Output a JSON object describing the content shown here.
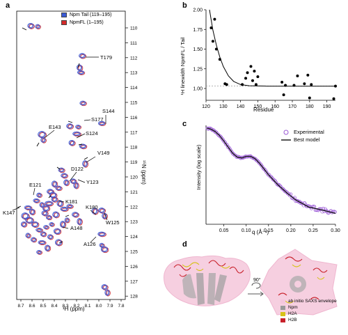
{
  "panels": {
    "a": "a",
    "b": "b",
    "c": "c",
    "d": "d"
  },
  "panel_a": {
    "legend": [
      {
        "label": "Npm Tail (119–195)",
        "color": "#3b5bd6"
      },
      {
        "label": "NpmFL (1–195)",
        "color": "#d42a2a"
      }
    ],
    "xlabel": "¹H (ppm)",
    "ylabel": "¹⁵N (ppm)",
    "x_ticks": [
      "8.7",
      "8.6",
      "8.5",
      "8.4",
      "8.3",
      "8.2",
      "8.1",
      "8.0",
      "7.9",
      "7.8"
    ],
    "y_ticks": [
      "110",
      "111",
      "112",
      "113",
      "114",
      "115",
      "116",
      "117",
      "118",
      "119",
      "120",
      "121",
      "122",
      "123",
      "124",
      "125",
      "126",
      "127",
      "128"
    ],
    "residue_labels": [
      "T179",
      "S144",
      "S177",
      "E143",
      "S124",
      "V149",
      "D122",
      "Y123",
      "E121",
      "K181",
      "K147",
      "K180",
      "W125",
      "A148",
      "A126"
    ]
  },
  "chart_data": [
    {
      "type": "scatter",
      "title": "",
      "xlabel": "Residue",
      "ylabel": "¹H linewidth NpmFL / Tail",
      "xlim": [
        120,
        195
      ],
      "ylim": [
        0.85,
        2.0
      ],
      "x_ticks": [
        "120",
        "130",
        "140",
        "150",
        "160",
        "170",
        "180",
        "190"
      ],
      "y_ticks": [
        "1.00",
        "1.25",
        "1.50",
        "1.75",
        "2.00"
      ],
      "points": [
        [
          123,
          1.77
        ],
        [
          124,
          1.6
        ],
        [
          125,
          1.88
        ],
        [
          126,
          1.5
        ],
        [
          128,
          1.37
        ],
        [
          131,
          1.06
        ],
        [
          132,
          1.05
        ],
        [
          141,
          1.05
        ],
        [
          143,
          1.13
        ],
        [
          144,
          1.2
        ],
        [
          146,
          1.28
        ],
        [
          147,
          1.1
        ],
        [
          148,
          1.22
        ],
        [
          149,
          1.05
        ],
        [
          150,
          1.15
        ],
        [
          164,
          1.08
        ],
        [
          165,
          0.92
        ],
        [
          166,
          1.04
        ],
        [
          171,
          1.04
        ],
        [
          173,
          1.16
        ],
        [
          177,
          1.06
        ],
        [
          179,
          1.17
        ],
        [
          180,
          0.88
        ],
        [
          181,
          1.05
        ],
        [
          194,
          0.87
        ],
        [
          195,
          1.03
        ]
      ],
      "fit": [
        [
          122,
          2.0
        ],
        [
          124,
          1.74
        ],
        [
          126,
          1.55
        ],
        [
          128,
          1.4
        ],
        [
          130,
          1.28
        ],
        [
          133,
          1.16
        ],
        [
          136,
          1.09
        ],
        [
          140,
          1.05
        ],
        [
          145,
          1.035
        ],
        [
          155,
          1.03
        ],
        [
          195,
          1.03
        ]
      ],
      "reference_line": 1.03,
      "grid": false
    },
    {
      "type": "line",
      "title": "",
      "xlabel": "q (Å⁻¹)",
      "ylabel": "Intensity (log scale)",
      "xlim": [
        0.01,
        0.3
      ],
      "x_ticks": [
        "0.05",
        "0.10",
        "0.15",
        "0.20",
        "0.25",
        "0.30"
      ],
      "series": [
        {
          "name": "Experimental",
          "marker": "circle",
          "color": "#9b59d6"
        },
        {
          "name": "Best model",
          "color": "#111111"
        }
      ],
      "curve": [
        [
          0.012,
          1.0
        ],
        [
          0.02,
          0.97
        ],
        [
          0.03,
          0.88
        ],
        [
          0.04,
          0.75
        ],
        [
          0.05,
          0.6
        ],
        [
          0.06,
          0.47
        ],
        [
          0.07,
          0.37
        ],
        [
          0.08,
          0.32
        ],
        [
          0.09,
          0.31
        ],
        [
          0.1,
          0.33
        ],
        [
          0.11,
          0.33
        ],
        [
          0.12,
          0.3
        ],
        [
          0.13,
          0.25
        ],
        [
          0.14,
          0.2
        ],
        [
          0.15,
          0.16
        ],
        [
          0.17,
          0.11
        ],
        [
          0.19,
          0.08
        ],
        [
          0.21,
          0.06
        ],
        [
          0.24,
          0.045
        ],
        [
          0.27,
          0.04
        ],
        [
          0.3,
          0.035
        ]
      ],
      "grid": false
    }
  ],
  "panel_d": {
    "rotation_label": "90°",
    "legend": [
      {
        "label": "ab initio SAXS envelope",
        "color": "#f4c6dc"
      },
      {
        "label": "Npm",
        "color": "#9a9a9a"
      },
      {
        "label": "H2A",
        "color": "#d7c21a"
      },
      {
        "label": "H2B",
        "color": "#c8202a"
      }
    ]
  }
}
